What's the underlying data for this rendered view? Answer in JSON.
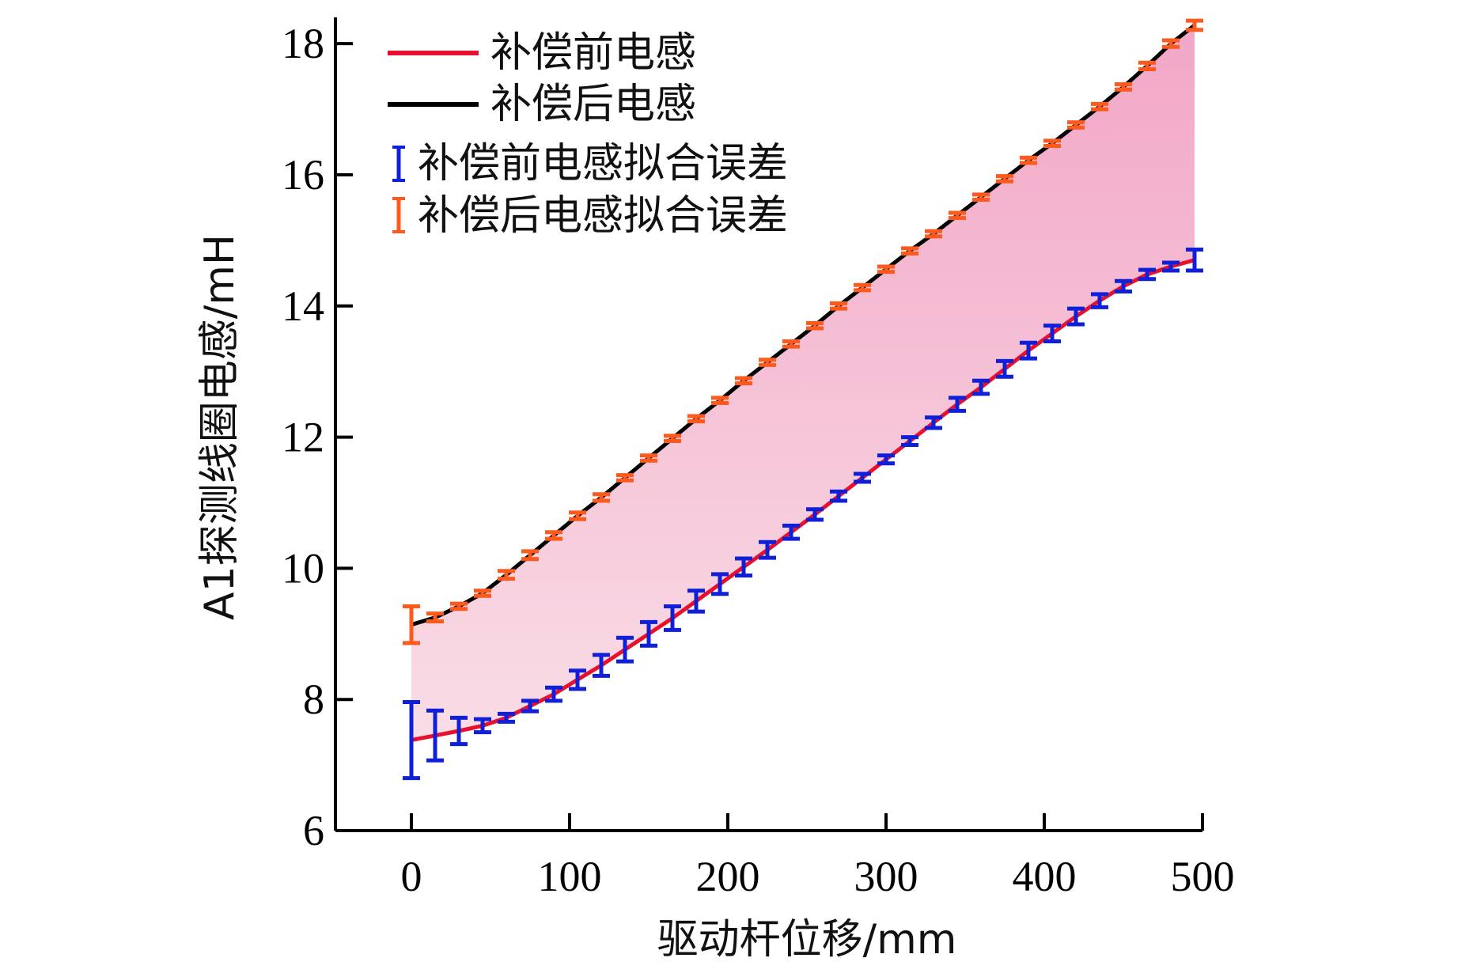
{
  "chart_data": {
    "type": "line",
    "xlabel": "驱动杆位移/mm",
    "ylabel": "A1探测线圈电感/mH",
    "xlim": [
      -48,
      500
    ],
    "ylim": [
      6,
      18.4
    ],
    "xticks": [
      0,
      100,
      200,
      300,
      400,
      500
    ],
    "yticks": [
      6,
      8,
      10,
      12,
      14,
      16,
      18
    ],
    "grid": false,
    "legend_position": "top-left",
    "fill_between_series": true,
    "colors": {
      "before": "#e8112d",
      "after": "#000000",
      "before_err": "#1020d8",
      "after_err": "#ff5a1e",
      "fill": "#f2a6c6"
    },
    "x": [
      0,
      15,
      30,
      45,
      60,
      75,
      90,
      105,
      120,
      135,
      150,
      165,
      180,
      195,
      210,
      225,
      240,
      255,
      270,
      285,
      300,
      315,
      330,
      345,
      360,
      375,
      390,
      405,
      420,
      435,
      450,
      465,
      480,
      495
    ],
    "series": [
      {
        "name": "补偿前电感",
        "values": [
          7.38,
          7.45,
          7.52,
          7.6,
          7.72,
          7.9,
          8.08,
          8.3,
          8.52,
          8.76,
          9.0,
          9.24,
          9.5,
          9.76,
          10.02,
          10.28,
          10.55,
          10.82,
          11.1,
          11.38,
          11.66,
          11.94,
          12.22,
          12.5,
          12.76,
          13.04,
          13.32,
          13.58,
          13.84,
          14.08,
          14.3,
          14.48,
          14.6,
          14.7
        ]
      },
      {
        "name": "补偿后电感",
        "values": [
          9.14,
          9.25,
          9.42,
          9.62,
          9.9,
          10.2,
          10.5,
          10.8,
          11.08,
          11.38,
          11.68,
          11.98,
          12.28,
          12.56,
          12.86,
          13.14,
          13.42,
          13.7,
          14.0,
          14.28,
          14.56,
          14.84,
          15.1,
          15.38,
          15.66,
          15.94,
          16.22,
          16.48,
          16.76,
          17.04,
          17.34,
          17.66,
          18.0,
          18.28
        ]
      }
    ],
    "error_bars": [
      {
        "name": "补偿前电感拟合误差",
        "errors": [
          0.58,
          0.38,
          0.2,
          0.1,
          0.06,
          0.08,
          0.1,
          0.14,
          0.16,
          0.18,
          0.18,
          0.18,
          0.16,
          0.15,
          0.13,
          0.12,
          0.1,
          0.08,
          0.07,
          0.06,
          0.06,
          0.06,
          0.08,
          0.1,
          0.1,
          0.12,
          0.12,
          0.12,
          0.12,
          0.1,
          0.08,
          0.07,
          0.06,
          0.16
        ]
      },
      {
        "name": "补偿后电感拟合误差",
        "errors": [
          0.28,
          0.06,
          0.04,
          0.04,
          0.06,
          0.06,
          0.05,
          0.05,
          0.05,
          0.04,
          0.04,
          0.04,
          0.04,
          0.04,
          0.04,
          0.04,
          0.04,
          0.04,
          0.04,
          0.04,
          0.04,
          0.04,
          0.04,
          0.04,
          0.04,
          0.04,
          0.04,
          0.04,
          0.04,
          0.04,
          0.04,
          0.05,
          0.05,
          0.07
        ]
      }
    ]
  }
}
